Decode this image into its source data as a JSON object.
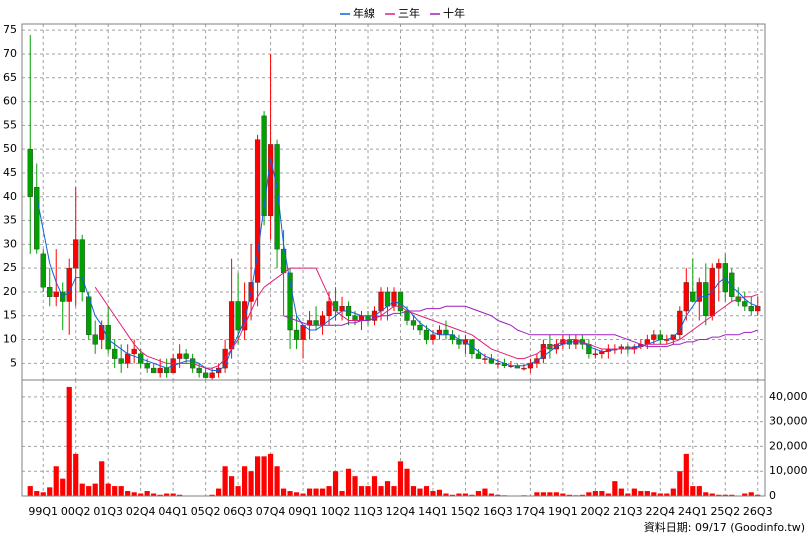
{
  "chart_data": {
    "type": "candlestick",
    "categories": [
      null,
      null,
      "99Q1",
      null,
      null,
      null,
      null,
      "00Q2",
      null,
      null,
      null,
      null,
      "01Q3",
      null,
      null,
      null,
      null,
      "02Q4",
      null,
      null,
      null,
      null,
      "04Q1",
      null,
      null,
      null,
      null,
      "05Q2",
      null,
      null,
      null,
      null,
      "06Q3",
      null,
      null,
      null,
      null,
      "07Q4",
      null,
      null,
      null,
      null,
      "09Q1",
      null,
      null,
      null,
      null,
      "10Q2",
      null,
      null,
      null,
      null,
      "11Q3",
      null,
      null,
      null,
      null,
      "12Q4",
      null,
      null,
      null,
      null,
      "14Q1",
      null,
      null,
      null,
      null,
      "15Q2",
      null,
      null,
      null,
      null,
      "16Q3",
      null,
      null,
      null,
      null,
      "17Q4",
      null,
      null,
      null,
      null,
      "19Q1",
      null,
      null,
      null,
      null,
      "20Q2",
      null,
      null,
      null,
      null,
      "21Q3",
      null,
      null,
      null,
      null,
      "22Q4",
      null,
      null,
      null,
      null,
      "24Q1",
      null,
      null,
      null,
      null,
      "25Q2",
      null,
      null,
      null,
      null,
      "26Q3"
    ],
    "open": [
      50,
      42,
      28,
      21,
      19,
      20,
      18,
      25,
      31,
      19,
      11,
      10,
      13,
      8,
      6,
      5,
      7,
      7,
      5,
      4,
      3,
      4,
      3,
      6,
      7,
      6,
      4,
      3,
      2,
      3,
      4,
      8,
      18,
      12,
      18,
      22,
      57,
      36,
      51,
      29,
      24,
      12,
      10,
      13,
      14,
      13,
      15,
      18,
      16,
      17,
      15,
      14,
      15,
      14,
      16,
      20,
      17,
      20,
      16,
      14,
      13,
      12,
      10,
      11,
      12,
      11,
      10,
      9,
      10,
      7,
      6,
      6,
      5,
      5,
      4.5,
      4.5,
      4,
      4,
      5,
      6,
      9,
      8,
      9,
      10,
      9,
      10,
      9,
      7,
      7,
      7.5,
      8,
      8,
      8.5,
      8,
      8.5,
      9,
      10,
      11,
      10,
      10,
      11,
      16,
      20,
      18,
      22,
      15,
      25,
      26,
      24,
      19,
      18,
      17,
      16
    ],
    "high": [
      74,
      47,
      29,
      25,
      29,
      22,
      27,
      42,
      32,
      20,
      14,
      14,
      17,
      10,
      9,
      9,
      10,
      8,
      6,
      5,
      6,
      6,
      7,
      9,
      8,
      7,
      5,
      4,
      4,
      5,
      10,
      27,
      24,
      22,
      30,
      53,
      58,
      70,
      52,
      33,
      25,
      15,
      13,
      16,
      17,
      16,
      20,
      21,
      19,
      18,
      16,
      16,
      16,
      17,
      21,
      21,
      21,
      20,
      17,
      15,
      14,
      13,
      12,
      13,
      14,
      12,
      11,
      11,
      10,
      8,
      7,
      7,
      6,
      6,
      5.5,
      5,
      5,
      6,
      7,
      10,
      11,
      10,
      11,
      11,
      11,
      11,
      10,
      8,
      8,
      9,
      9,
      9,
      9,
      9,
      10,
      11,
      12,
      12,
      11,
      11,
      17,
      25,
      27,
      23,
      26,
      26,
      27,
      28,
      25,
      21,
      20,
      19,
      19
    ],
    "low": [
      28,
      28,
      20,
      17,
      17,
      12,
      11,
      17,
      18,
      10,
      7,
      8,
      7,
      4,
      3,
      4,
      5,
      4,
      3,
      3,
      2,
      2,
      3,
      4,
      5,
      3,
      2,
      2,
      1.5,
      2,
      3,
      6,
      9,
      10,
      14,
      17,
      34,
      31,
      25,
      15,
      8,
      8,
      6,
      10,
      12,
      11,
      13,
      14,
      14,
      13,
      13,
      12,
      13,
      13,
      14,
      14,
      16,
      15,
      13,
      12,
      11,
      9,
      9,
      10,
      10,
      9,
      8,
      7,
      6,
      6,
      5,
      5,
      4,
      4,
      4,
      4,
      3.5,
      3,
      4,
      5,
      6,
      7,
      8,
      8,
      8,
      8,
      6,
      6,
      6,
      6,
      7,
      7,
      7,
      7,
      8,
      8,
      9,
      9,
      9,
      9,
      10,
      14,
      18,
      14,
      13,
      14,
      18,
      18,
      18,
      17,
      16,
      15,
      15
    ],
    "close": [
      40,
      29,
      21,
      19,
      20,
      18,
      25,
      31,
      20,
      11,
      9,
      13,
      8,
      6,
      5,
      7,
      8,
      5,
      4,
      3,
      4,
      3,
      6,
      7,
      6,
      4,
      3,
      2,
      3,
      4,
      8,
      18,
      12,
      18,
      22,
      52,
      36,
      51,
      29,
      24,
      12,
      10,
      13,
      14,
      13,
      15,
      18,
      16,
      17,
      15,
      14,
      15,
      14,
      16,
      20,
      17,
      20,
      16,
      14,
      13,
      12,
      10,
      11,
      12,
      11,
      10,
      9,
      10,
      7,
      6,
      6,
      5,
      5,
      4.5,
      4.5,
      4,
      4,
      5,
      6,
      9,
      8,
      9,
      10,
      9,
      10,
      9,
      7,
      7,
      7.5,
      8,
      8,
      8.5,
      8,
      8.5,
      9,
      10,
      11,
      10,
      10,
      11,
      16,
      22,
      18,
      22,
      15,
      25,
      26,
      20,
      19,
      18,
      17,
      16,
      17
    ],
    "up_color": "#ff0000",
    "down_color": "#00a000",
    "series": [
      {
        "name": "年線",
        "color": "#1060e0",
        "values": [
          null,
          40,
          33,
          26,
          22,
          19,
          20,
          23,
          23,
          19,
          15,
          13,
          10,
          9,
          8,
          7,
          6.5,
          6,
          5.5,
          5,
          4.5,
          4,
          4.5,
          5,
          5.5,
          5.5,
          5,
          4,
          3.5,
          3.5,
          4.5,
          8,
          11,
          14,
          20,
          28,
          38,
          48,
          42,
          30,
          22,
          15,
          13,
          12,
          12,
          13,
          14,
          15,
          16,
          16,
          15.5,
          15,
          15,
          15,
          16,
          17,
          18,
          17.5,
          16.5,
          15,
          13.5,
          12.5,
          11.5,
          11,
          11,
          11,
          10,
          9.5,
          8.5,
          7.5,
          6.5,
          6,
          5.5,
          5,
          4.5,
          4.5,
          4.5,
          5,
          5.5,
          6.5,
          7.5,
          8.5,
          9,
          9.5,
          9.5,
          9.5,
          8.5,
          8,
          7.5,
          7.5,
          8,
          8,
          8,
          8.5,
          8.5,
          9,
          9.5,
          10,
          10,
          10.5,
          12,
          15,
          17,
          19,
          19,
          20,
          22,
          23,
          21,
          20,
          18.5,
          17.5,
          17
        ]
      },
      {
        "name": "三年",
        "color": "#e0207a",
        "values": [
          null,
          null,
          null,
          null,
          null,
          null,
          null,
          null,
          null,
          null,
          21,
          19,
          17,
          15,
          13,
          11,
          9,
          7.5,
          6.5,
          6,
          5.5,
          5,
          5,
          5,
          5,
          5,
          4.5,
          4,
          4,
          4.5,
          6,
          8,
          10,
          13,
          16,
          19,
          21,
          22,
          23,
          24,
          25,
          25,
          25,
          25,
          25,
          22,
          19,
          16,
          15,
          14,
          14,
          14,
          14,
          14.5,
          15,
          16,
          17,
          17,
          16,
          15.5,
          15,
          14.5,
          14,
          13.5,
          13,
          12.5,
          12,
          11.5,
          11,
          10,
          9,
          8,
          7.5,
          7,
          6.5,
          6,
          6,
          6.5,
          7,
          8,
          8.5,
          9,
          9.5,
          10,
          10,
          9.5,
          9,
          8.5,
          8,
          8,
          8,
          8,
          8,
          8,
          8.5,
          9,
          9,
          9,
          9,
          9.5,
          10,
          11,
          12,
          13,
          14,
          15,
          16,
          17,
          18,
          18.5,
          19,
          19,
          19.5
        ]
      },
      {
        "name": "十年",
        "color": "#9a20c0",
        "values": [
          null,
          null,
          null,
          null,
          null,
          null,
          null,
          null,
          null,
          null,
          null,
          null,
          null,
          null,
          null,
          null,
          null,
          null,
          null,
          null,
          null,
          null,
          null,
          null,
          null,
          null,
          null,
          null,
          null,
          null,
          null,
          null,
          null,
          null,
          null,
          null,
          null,
          null,
          null,
          15,
          14.5,
          14,
          13.5,
          13,
          13,
          13,
          13,
          13,
          13,
          13.5,
          13.5,
          14,
          14,
          14.5,
          15,
          15,
          15.5,
          15.5,
          16,
          16,
          16,
          16.5,
          16.5,
          16.5,
          17,
          17,
          17,
          17,
          16.5,
          16,
          15.5,
          15,
          14,
          13.5,
          13,
          12,
          11.5,
          11,
          11,
          11,
          11,
          11,
          11,
          11,
          11,
          11,
          11,
          11,
          11,
          11,
          11,
          10.5,
          10,
          9.5,
          9,
          8.5,
          8.5,
          8.5,
          8.5,
          9,
          9,
          9.5,
          9.5,
          10,
          10,
          10.5,
          10.5,
          11,
          11,
          11,
          11.5,
          11.5,
          12
        ]
      }
    ],
    "volume": {
      "color": "#ff0000",
      "values": [
        4000,
        2000,
        1500,
        3500,
        12000,
        7000,
        44000,
        17000,
        5000,
        4000,
        5000,
        14000,
        5000,
        4000,
        4000,
        2000,
        1500,
        1000,
        2000,
        1000,
        500,
        1000,
        1000,
        500,
        200,
        100,
        100,
        100,
        500,
        3000,
        12000,
        8000,
        4000,
        12000,
        10000,
        16000,
        16000,
        17000,
        12000,
        3000,
        2000,
        1500,
        1000,
        3000,
        3000,
        3000,
        4000,
        10000,
        2000,
        11000,
        8000,
        4000,
        4000,
        8000,
        4000,
        6000,
        4000,
        14000,
        11000,
        4000,
        3000,
        4000,
        2000,
        2500,
        1000,
        500,
        1000,
        1000,
        500,
        2000,
        3000,
        1000,
        500,
        300,
        200,
        200,
        300,
        200,
        1500,
        1500,
        1500,
        1500,
        1000,
        500,
        300,
        500,
        1500,
        2000,
        2000,
        1000,
        6000,
        3000,
        1000,
        3000,
        2000,
        2000,
        1500,
        1000,
        1000,
        3000,
        10000,
        17000,
        4000,
        4000,
        1500,
        1000,
        500,
        500,
        500,
        200,
        1000,
        1500,
        500
      ]
    },
    "ylim": [
      1.5,
      76.3
    ],
    "yticks": [
      5,
      10,
      15,
      20,
      25,
      30,
      35,
      40,
      45,
      50,
      55,
      60,
      65,
      70,
      75
    ],
    "y2lim": [
      0,
      46800
    ],
    "y2ticks": [
      0,
      {
        "value": 10000,
        "label": "10,000"
      },
      {
        "value": 20000,
        "label": "20,000"
      },
      {
        "value": 30000,
        "label": "30,000"
      },
      {
        "value": 40000,
        "label": "40,000"
      }
    ],
    "grid": true,
    "source": "資料日期: 09/17 (Goodinfo.tw)"
  }
}
